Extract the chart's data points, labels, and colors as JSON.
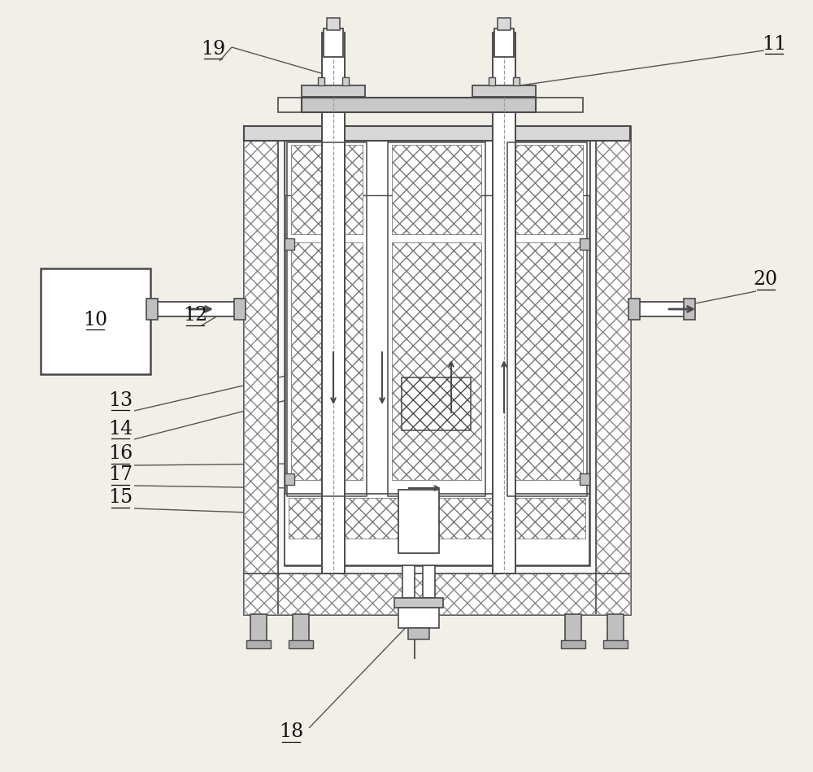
{
  "bg_color": "#f2efe9",
  "lc": "#4a4a4a",
  "fw": "#ffffff",
  "fg": "#d0d0d0",
  "fontsize": 17
}
